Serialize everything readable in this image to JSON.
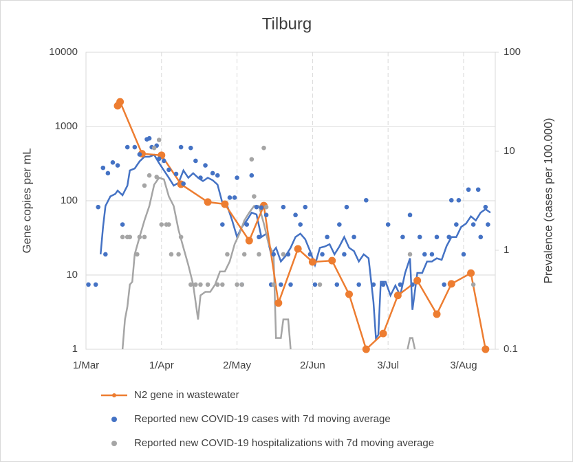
{
  "chart_data": {
    "type": "line",
    "title": "Tilburg",
    "y_label": "Gene copies per mL",
    "y2_label": "Prevalence (cases per 100.000)",
    "xlim": [
      0,
      168
    ],
    "xticks": [
      {
        "value": 0,
        "label": "1/Mar"
      },
      {
        "value": 31,
        "label": "1/Apr"
      },
      {
        "value": 62,
        "label": "2/May"
      },
      {
        "value": 93,
        "label": "2/Jun"
      },
      {
        "value": 124,
        "label": "3/Jul"
      },
      {
        "value": 155,
        "label": "3/Aug"
      }
    ],
    "ylim": [
      1,
      10000
    ],
    "yticks": [
      1,
      10,
      100,
      1000,
      10000
    ],
    "y2lim": [
      0.1,
      100
    ],
    "y2ticks": [
      0.1,
      1,
      10,
      100
    ],
    "log_scale": true,
    "grid": true,
    "legend": "bottom",
    "series": [
      {
        "name": "N2 gene in wastewater",
        "color": "#ed7d31",
        "style": "line-marker",
        "x": [
          13,
          14,
          23,
          31,
          39,
          50,
          57,
          67,
          73,
          79,
          87,
          93,
          101,
          108,
          115,
          122,
          128,
          136,
          144,
          150,
          158,
          164
        ],
        "values": [
          1900,
          2150,
          430,
          410,
          167,
          96,
          90,
          29,
          86,
          4.2,
          22.5,
          15,
          15.6,
          5.5,
          1,
          1.63,
          5.3,
          8.4,
          2.97,
          7.6,
          10.6,
          1
        ]
      },
      {
        "name": "Reported new COVID-19 cases with 7d moving average",
        "color": "#4472c4",
        "style": "markers",
        "axis": "y2",
        "x": [
          1,
          4,
          5,
          7,
          8,
          9,
          11,
          13,
          15,
          17,
          20,
          22,
          25,
          26,
          27,
          29,
          30,
          32,
          34,
          37,
          39,
          40,
          43,
          45,
          47,
          49,
          52,
          54,
          56,
          59,
          61,
          62,
          64,
          66,
          68,
          70,
          71,
          72,
          74,
          76,
          77,
          80,
          81,
          83,
          84,
          86,
          88,
          90,
          92,
          94,
          97,
          99,
          103,
          104,
          106,
          107,
          110,
          112,
          115,
          118,
          122,
          124,
          129,
          130,
          133,
          134,
          137,
          139,
          142,
          144,
          147,
          149,
          150,
          152,
          153,
          155,
          157,
          159,
          161,
          162,
          164,
          165
        ],
        "values": [
          0.45,
          0.45,
          2.73,
          6.8,
          0.91,
          6.0,
          7.7,
          7.2,
          1.82,
          11,
          11,
          9.3,
          13.2,
          13.5,
          11,
          11.4,
          8.4,
          8,
          6.5,
          5.9,
          11,
          4.7,
          10.8,
          8,
          5.4,
          7.2,
          6.0,
          5.7,
          1.82,
          3.4,
          3.4,
          5.4,
          0.45,
          1.82,
          5.7,
          2.73,
          1.36,
          2.7,
          2.27,
          0.45,
          0.91,
          0.45,
          2.73,
          0.91,
          0.45,
          2.27,
          1.82,
          2.73,
          0.91,
          0.45,
          0.91,
          1.36,
          0.45,
          1.82,
          0.91,
          2.73,
          1.36,
          0.45,
          3.2,
          0.45,
          0.45,
          1.82,
          0.45,
          1.36,
          2.27,
          0.45,
          1.36,
          0.91,
          0.91,
          1.36,
          0.45,
          1.36,
          3.2,
          1.82,
          3.2,
          0.91,
          4.1,
          1.82,
          4.1,
          1.36,
          2.73,
          1.82
        ],
        "moving_average": {
          "x": [
            6,
            7,
            8,
            10,
            12,
            13,
            15,
            17,
            18,
            20,
            22,
            24,
            26,
            28,
            30,
            32,
            34,
            36,
            38,
            40,
            42,
            44,
            46,
            48,
            50,
            52,
            54,
            56,
            58,
            60,
            62,
            64,
            66,
            68,
            70,
            72,
            74,
            76,
            78,
            80,
            82,
            84,
            86,
            88,
            90,
            92,
            94,
            96,
            98,
            100,
            102,
            104,
            106,
            108,
            110,
            112,
            114,
            116,
            118,
            119,
            120,
            121,
            123,
            125,
            127,
            129,
            131,
            133,
            134,
            136,
            138,
            140,
            142,
            144,
            146,
            148,
            150,
            152,
            154,
            156,
            158,
            160,
            162,
            164,
            166
          ],
          "values": [
            0.91,
            1.72,
            2.8,
            3.5,
            3.7,
            4.0,
            3.6,
            4.5,
            6.4,
            6.7,
            7.9,
            8.8,
            8.8,
            9.2,
            7.6,
            6.4,
            5.4,
            4.5,
            4.8,
            6.4,
            5.4,
            6.0,
            5.4,
            5.0,
            5.4,
            5.1,
            4.6,
            3.0,
            2.8,
            2.0,
            1.36,
            1.72,
            2.0,
            2.4,
            2.3,
            1.36,
            1.47,
            0.91,
            1.06,
            0.77,
            0.88,
            1.06,
            1.36,
            1.47,
            1.29,
            0.98,
            0.71,
            1.06,
            1.09,
            1.15,
            0.91,
            1.09,
            1.36,
            1.06,
            0.98,
            0.77,
            0.91,
            0.83,
            0.3,
            0.13,
            0.14,
            0.48,
            0.48,
            0.35,
            0.44,
            0.35,
            0.59,
            0.83,
            0.25,
            0.59,
            0.59,
            0.77,
            0.77,
            0.83,
            0.8,
            1.1,
            1.36,
            1.36,
            1.72,
            1.86,
            2.2,
            2.0,
            2.4,
            2.6,
            2.4
          ]
        }
      },
      {
        "name": "Reported new COVID-19 hospitalizations with 7d moving average",
        "color": "#a5a5a5",
        "style": "markers",
        "axis": "y2",
        "x": [
          15,
          17,
          18,
          21,
          22,
          24,
          24,
          26,
          28,
          29,
          30,
          31,
          33,
          34,
          35,
          38,
          39,
          43,
          45,
          47,
          50,
          54,
          56,
          58,
          62,
          64,
          65,
          68,
          69,
          71,
          73,
          74,
          77,
          81,
          96,
          133,
          159
        ],
        "values": [
          1.36,
          1.36,
          1.36,
          0.91,
          1.36,
          1.36,
          4.5,
          5.7,
          10.8,
          5.5,
          13,
          1.82,
          1.82,
          1.82,
          0.91,
          0.91,
          1.36,
          0.45,
          0.45,
          0.45,
          0.45,
          0.45,
          0.45,
          0.91,
          0.45,
          0.45,
          0.91,
          8.3,
          3.5,
          0.91,
          10.8,
          2.73,
          0.45,
          0.91,
          0.45,
          0.91,
          0.45
        ],
        "moving_average": {
          "x": [
            15,
            16,
            17,
            18,
            19,
            20,
            22,
            24,
            26,
            28,
            30,
            32,
            34,
            36,
            38,
            40,
            42,
            44,
            46,
            47,
            49,
            51,
            53,
            55,
            57,
            59,
            61,
            63,
            65,
            67,
            69,
            71,
            73,
            75,
            77,
            78,
            80,
            81,
            83,
            84,
            85,
            132,
            133,
            134,
            135
          ],
          "values": [
            0.1,
            0.2,
            0.27,
            0.45,
            0.48,
            0.91,
            1.36,
            2.0,
            2.8,
            4.6,
            5.4,
            5.2,
            3.5,
            2.8,
            1.6,
            1.06,
            0.71,
            0.45,
            0.2,
            0.35,
            0.38,
            0.38,
            0.45,
            0.61,
            0.61,
            0.77,
            1.15,
            1.47,
            2.0,
            2.4,
            2.8,
            2.8,
            1.86,
            1.15,
            0.91,
            0.13,
            0.13,
            0.2,
            0.2,
            0.1,
            null,
            0.1,
            0.13,
            0.13,
            0.1
          ]
        }
      }
    ]
  }
}
